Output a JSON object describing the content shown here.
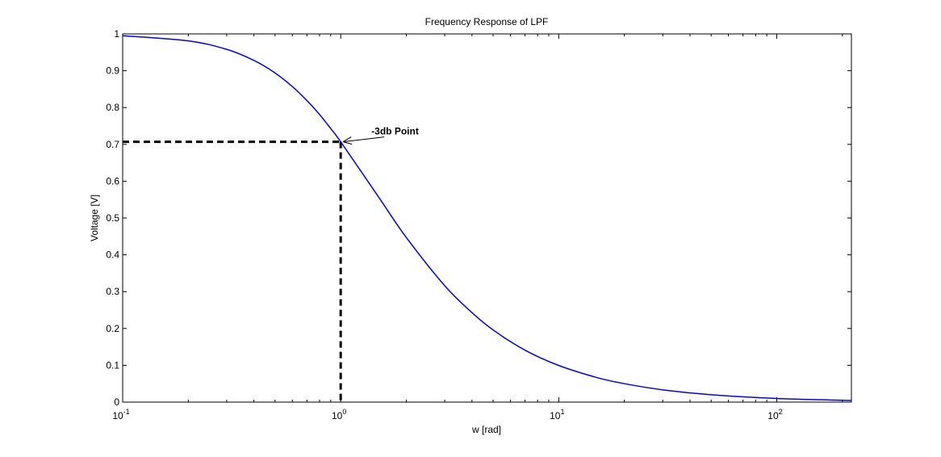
{
  "chart_data": {
    "type": "line",
    "title": "Frequency Response of LPF",
    "xlabel": "w [rad]",
    "ylabel": "Voltage [V]",
    "xscale": "log",
    "xlim": [
      0.1,
      220
    ],
    "ylim": [
      0,
      1
    ],
    "grid": false,
    "x_tick_labels": [
      {
        "value": 0.1,
        "base": "10",
        "exp": "-1"
      },
      {
        "value": 1,
        "base": "10",
        "exp": "0"
      },
      {
        "value": 10,
        "base": "10",
        "exp": "1"
      },
      {
        "value": 100,
        "base": "10",
        "exp": "2"
      }
    ],
    "y_ticks": [
      0,
      0.1,
      0.2,
      0.3,
      0.4,
      0.5,
      0.6,
      0.7,
      0.8,
      0.9,
      1
    ],
    "y_tick_labels": [
      "0",
      "0.1",
      "0.2",
      "0.3",
      "0.4",
      "0.5",
      "0.6",
      "0.7",
      "0.8",
      "0.9",
      "1"
    ],
    "series": [
      {
        "color": "#0000ff",
        "x": [
          0.1,
          0.2,
          0.3,
          0.4,
          0.5,
          0.6,
          0.7,
          0.8,
          0.9,
          1,
          1.5,
          2,
          3,
          4,
          5,
          7,
          10,
          15,
          20,
          30,
          50,
          100,
          200,
          220
        ],
        "y": [
          0.995,
          0.981,
          0.958,
          0.928,
          0.894,
          0.857,
          0.819,
          0.781,
          0.743,
          0.707,
          0.555,
          0.447,
          0.316,
          0.243,
          0.196,
          0.141,
          0.0995,
          0.0665,
          0.05,
          0.0333,
          0.02,
          0.01,
          0.005,
          0.0045
        ]
      }
    ],
    "reference_lines": {
      "color": "#000000",
      "style": "dashed",
      "point": {
        "x": 1,
        "y": 0.707
      }
    },
    "annotations": [
      {
        "text": "-3db Point",
        "arrow_to": {
          "x": 1,
          "y": 0.707
        }
      }
    ]
  }
}
